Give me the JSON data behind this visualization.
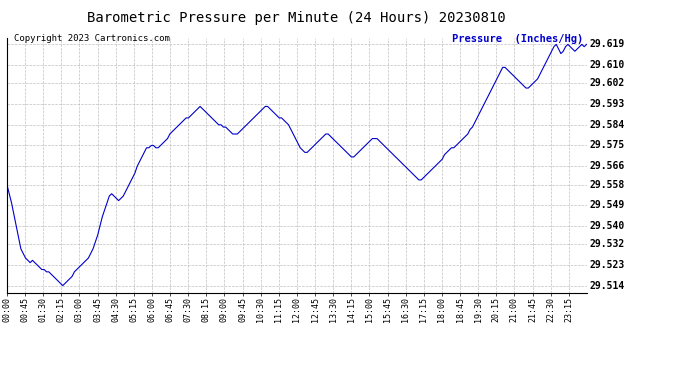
{
  "title": "Barometric Pressure per Minute (24 Hours) 20230810",
  "copyright": "Copyright 2023 Cartronics.com",
  "legend_label": "Pressure  (Inches/Hg)",
  "line_color": "#0000cc",
  "background_color": "#ffffff",
  "grid_color": "#b0b0b0",
  "yticks": [
    29.514,
    29.523,
    29.532,
    29.54,
    29.549,
    29.558,
    29.566,
    29.575,
    29.584,
    29.593,
    29.602,
    29.61,
    29.619
  ],
  "ylim": [
    29.511,
    29.622
  ],
  "xtick_labels": [
    "00:00",
    "00:45",
    "01:30",
    "02:15",
    "03:00",
    "03:45",
    "04:30",
    "05:15",
    "06:00",
    "06:45",
    "07:30",
    "08:15",
    "09:00",
    "09:45",
    "10:30",
    "11:15",
    "12:00",
    "12:45",
    "13:30",
    "14:15",
    "15:00",
    "15:45",
    "16:30",
    "17:15",
    "18:00",
    "18:45",
    "19:30",
    "20:15",
    "21:00",
    "21:45",
    "22:30",
    "23:15"
  ],
  "pressure_data": [
    29.558,
    29.554,
    29.55,
    29.545,
    29.54,
    29.535,
    29.53,
    29.528,
    29.526,
    29.525,
    29.524,
    29.525,
    29.524,
    29.523,
    29.522,
    29.521,
    29.521,
    29.52,
    29.52,
    29.519,
    29.518,
    29.517,
    29.516,
    29.515,
    29.514,
    29.515,
    29.516,
    29.517,
    29.518,
    29.52,
    29.521,
    29.522,
    29.523,
    29.524,
    29.525,
    29.526,
    29.528,
    29.53,
    29.533,
    29.536,
    29.54,
    29.544,
    29.547,
    29.55,
    29.553,
    29.554,
    29.553,
    29.552,
    29.551,
    29.552,
    29.553,
    29.555,
    29.557,
    29.559,
    29.561,
    29.563,
    29.566,
    29.568,
    29.57,
    29.572,
    29.574,
    29.574,
    29.575,
    29.575,
    29.574,
    29.574,
    29.575,
    29.576,
    29.577,
    29.578,
    29.58,
    29.581,
    29.582,
    29.583,
    29.584,
    29.585,
    29.586,
    29.587,
    29.587,
    29.588,
    29.589,
    29.59,
    29.591,
    29.592,
    29.591,
    29.59,
    29.589,
    29.588,
    29.587,
    29.586,
    29.585,
    29.584,
    29.584,
    29.583,
    29.583,
    29.582,
    29.581,
    29.58,
    29.58,
    29.58,
    29.581,
    29.582,
    29.583,
    29.584,
    29.585,
    29.586,
    29.587,
    29.588,
    29.589,
    29.59,
    29.591,
    29.592,
    29.592,
    29.591,
    29.59,
    29.589,
    29.588,
    29.587,
    29.587,
    29.586,
    29.585,
    29.584,
    29.582,
    29.58,
    29.578,
    29.576,
    29.574,
    29.573,
    29.572,
    29.572,
    29.573,
    29.574,
    29.575,
    29.576,
    29.577,
    29.578,
    29.579,
    29.58,
    29.58,
    29.579,
    29.578,
    29.577,
    29.576,
    29.575,
    29.574,
    29.573,
    29.572,
    29.571,
    29.57,
    29.57,
    29.571,
    29.572,
    29.573,
    29.574,
    29.575,
    29.576,
    29.577,
    29.578,
    29.578,
    29.578,
    29.577,
    29.576,
    29.575,
    29.574,
    29.573,
    29.572,
    29.571,
    29.57,
    29.569,
    29.568,
    29.567,
    29.566,
    29.565,
    29.564,
    29.563,
    29.562,
    29.561,
    29.56,
    29.56,
    29.561,
    29.562,
    29.563,
    29.564,
    29.565,
    29.566,
    29.567,
    29.568,
    29.569,
    29.571,
    29.572,
    29.573,
    29.574,
    29.574,
    29.575,
    29.576,
    29.577,
    29.578,
    29.579,
    29.58,
    29.582,
    29.583,
    29.585,
    29.587,
    29.589,
    29.591,
    29.593,
    29.595,
    29.597,
    29.599,
    29.601,
    29.603,
    29.605,
    29.607,
    29.609,
    29.609,
    29.608,
    29.607,
    29.606,
    29.605,
    29.604,
    29.603,
    29.602,
    29.601,
    29.6,
    29.6,
    29.601,
    29.602,
    29.603,
    29.604,
    29.606,
    29.608,
    29.61,
    29.612,
    29.614,
    29.616,
    29.618,
    29.619,
    29.617,
    29.615,
    29.616,
    29.618,
    29.619,
    29.618,
    29.617,
    29.616,
    29.617,
    29.618,
    29.619,
    29.618,
    29.619
  ]
}
